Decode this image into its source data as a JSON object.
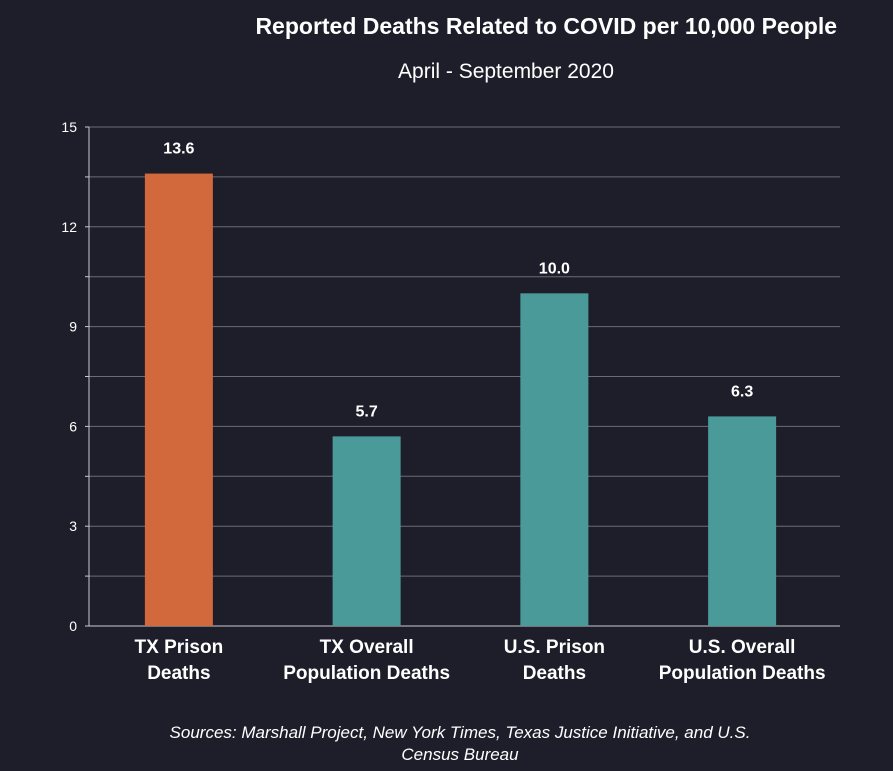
{
  "chart_data": {
    "type": "bar",
    "title": "Reported Deaths Related to COVID per 10,000 People",
    "subtitle": "April - September 2020",
    "categories": [
      [
        "TX Prison",
        "Deaths"
      ],
      [
        "TX Overall",
        "Population Deaths"
      ],
      [
        "U.S. Prison",
        "Deaths"
      ],
      [
        "U.S. Overall",
        "Population Deaths"
      ]
    ],
    "values": [
      13.6,
      5.7,
      10.0,
      6.3
    ],
    "data_labels": [
      "13.6",
      "5.7",
      "10.0",
      "6.3"
    ],
    "bar_colors": [
      "#d2693d",
      "#4b9a9a",
      "#4b9a9a",
      "#4b9a9a"
    ],
    "ylim": [
      0,
      15
    ],
    "yticks": [
      0,
      3,
      6,
      9,
      12,
      15
    ],
    "minor_gridlines": [
      1.5,
      4.5,
      7.5,
      10.5,
      13.5
    ],
    "grid": true,
    "xlabel": "",
    "ylabel": "",
    "source": "Sources: Marshall Project, New York Times, Texas Justice Initiative, and U.S. Census Bureau"
  }
}
